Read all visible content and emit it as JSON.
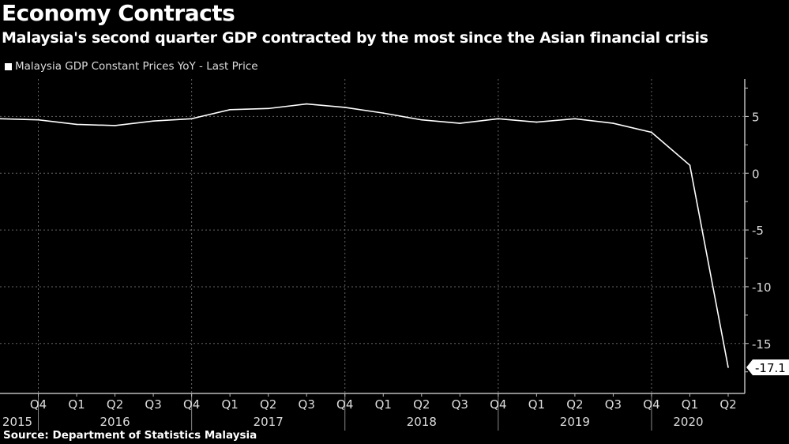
{
  "title": "Economy Contracts",
  "subtitle": "Malaysia's second quarter GDP contracted by the most since the Asian financial crisis",
  "source": "Source: Department of Statistics Malaysia",
  "chart_data": {
    "type": "line",
    "title": "Economy Contracts",
    "x": [
      "2015 Q3",
      "2015 Q4",
      "2016 Q1",
      "2016 Q2",
      "2016 Q3",
      "2016 Q4",
      "2017 Q1",
      "2017 Q2",
      "2017 Q3",
      "2017 Q4",
      "2018 Q1",
      "2018 Q2",
      "2018 Q3",
      "2018 Q4",
      "2019 Q1",
      "2019 Q2",
      "2019 Q3",
      "2019 Q4",
      "2020 Q1",
      "2020 Q2"
    ],
    "quarter_labels": [
      "",
      "Q4",
      "Q1",
      "Q2",
      "Q3",
      "Q4",
      "Q1",
      "Q2",
      "Q3",
      "Q4",
      "Q1",
      "Q2",
      "Q3",
      "Q4",
      "Q1",
      "Q2",
      "Q3",
      "Q4",
      "Q1",
      "Q2"
    ],
    "year_labels": [
      {
        "label": "2015",
        "from": 0,
        "to": 1
      },
      {
        "label": "2016",
        "from": 1,
        "to": 5
      },
      {
        "label": "2017",
        "from": 5,
        "to": 9
      },
      {
        "label": "2018",
        "from": 9,
        "to": 13
      },
      {
        "label": "2019",
        "from": 13,
        "to": 17
      },
      {
        "label": "2020",
        "from": 17,
        "to": 19
      }
    ],
    "series": [
      {
        "name": "Malaysia GDP Constant Prices YoY - Last Price",
        "color": "#ffffff",
        "values": [
          4.8,
          4.7,
          4.3,
          4.2,
          4.6,
          4.8,
          5.6,
          5.7,
          6.1,
          5.8,
          5.3,
          4.7,
          4.4,
          4.8,
          4.5,
          4.8,
          4.4,
          3.6,
          0.7,
          -17.1
        ]
      }
    ],
    "last_value_label": "-17.1",
    "yticks": [
      5,
      0,
      -5,
      -10,
      -15
    ],
    "ylim": [
      -19.4,
      8.3
    ],
    "grid": true,
    "legend": "top-left",
    "y_axis_side": "right"
  }
}
